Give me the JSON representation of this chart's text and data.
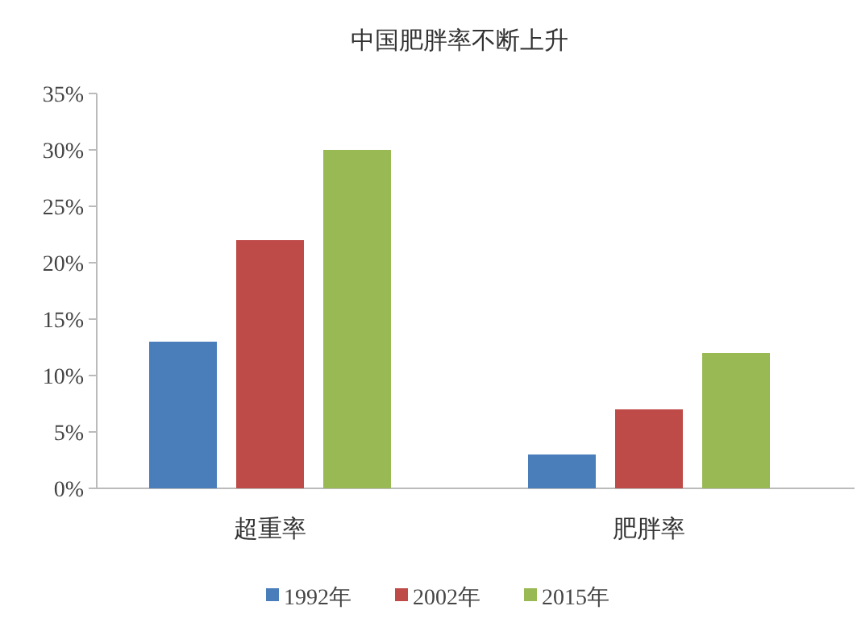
{
  "chart_data": {
    "type": "bar",
    "title": "中国肥胖率不断上升",
    "categories": [
      "超重率",
      "肥胖率"
    ],
    "series": [
      {
        "name": "1992年",
        "color": "#4a7ebb",
        "values": [
          13,
          3
        ]
      },
      {
        "name": "2002年",
        "color": "#be4b48",
        "values": [
          22,
          7
        ]
      },
      {
        "name": "2015年",
        "color": "#98b954",
        "values": [
          30,
          12
        ]
      }
    ],
    "ylim": [
      0,
      35
    ],
    "yticks": [
      {
        "value": 0,
        "label": "0%"
      },
      {
        "value": 5,
        "label": "5%"
      },
      {
        "value": 10,
        "label": "10%"
      },
      {
        "value": 15,
        "label": "15%"
      },
      {
        "value": 20,
        "label": "20%"
      },
      {
        "value": 25,
        "label": "25%"
      },
      {
        "value": 30,
        "label": "30%"
      },
      {
        "value": 35,
        "label": "35%"
      }
    ],
    "legend": "bottom"
  }
}
